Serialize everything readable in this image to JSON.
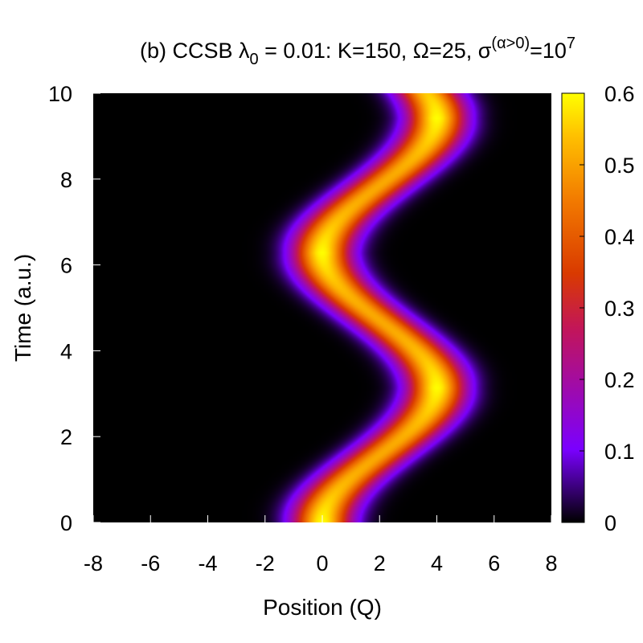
{
  "chart_data": {
    "type": "heatmap",
    "title": {
      "main": "(b) CCSB λ",
      "lambda_sub": "0",
      "mid": " = 0.01: K=150, Ω=25, σ",
      "sigma_sup": "(α>0)",
      "eq": "=10",
      "exp_sup": "7"
    },
    "xlabel": "Position (Q)",
    "ylabel": "Time (a.u.)",
    "xlim": [
      -8,
      8
    ],
    "ylim": [
      0,
      10
    ],
    "x_ticks": [
      "-8",
      "-6",
      "-4",
      "-2",
      "0",
      "2",
      "4",
      "6",
      "8"
    ],
    "y_ticks": [
      "0",
      "2",
      "4",
      "6",
      "8",
      "10"
    ],
    "colorbar": {
      "range": [
        0,
        0.6
      ],
      "ticks": [
        "0",
        "0.1",
        "0.2",
        "0.3",
        "0.4",
        "0.5",
        "0.6"
      ],
      "palette": [
        "#000000",
        "#7a00ff",
        "#c2155a",
        "#d93a00",
        "#f27a00",
        "#ffc000",
        "#ffff00"
      ]
    },
    "density": {
      "form": "gaussian wavepacket oscillating between turning points",
      "center_equilibrium": 2.0,
      "amplitude": 2.0,
      "period": 6.28,
      "peak_value": 0.6,
      "width_sigma": 0.7,
      "turning_points": [
        {
          "time": 0.0,
          "position": 0.0
        },
        {
          "time": 3.1,
          "position": 4.0
        },
        {
          "time": 6.3,
          "position": 0.0
        },
        {
          "time": 9.4,
          "position": 4.0
        }
      ]
    }
  }
}
